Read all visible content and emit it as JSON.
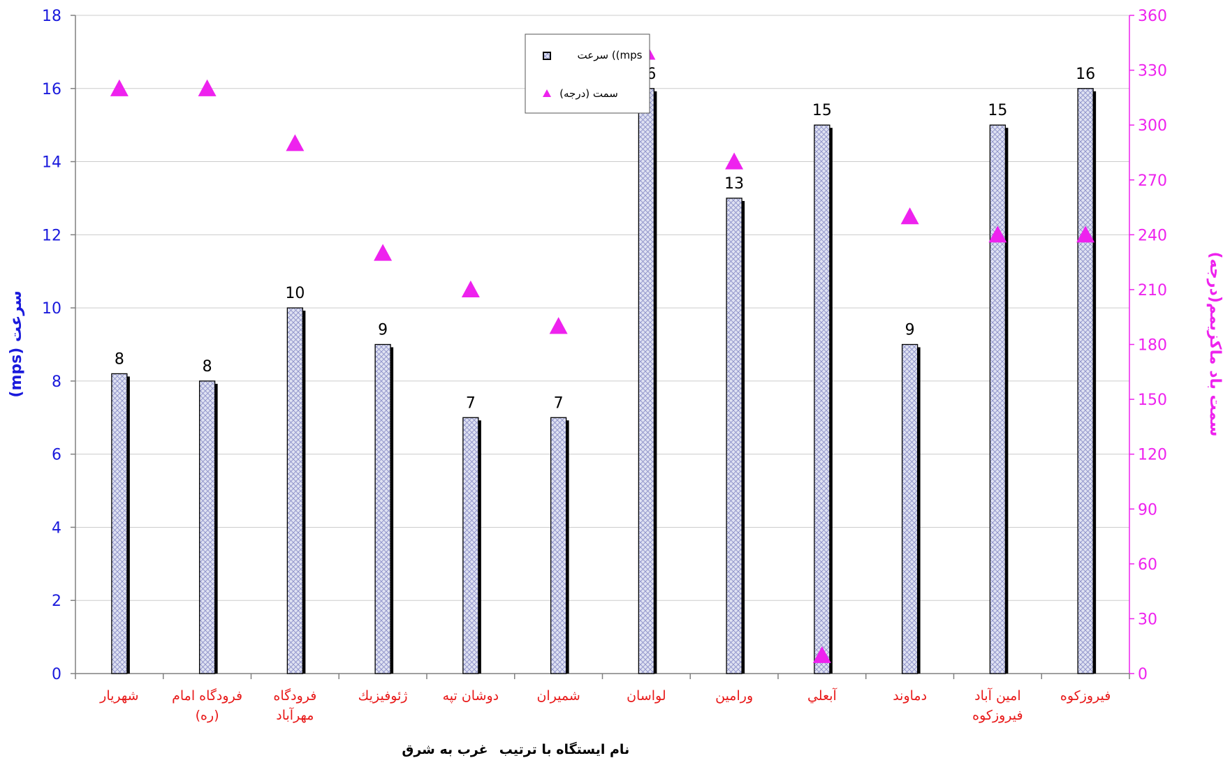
{
  "chart_data": {
    "type": "bar",
    "categories": [
      [
        "شهريار"
      ],
      [
        "فرودگاه امام",
        "(ره)"
      ],
      [
        "فرودگاه",
        "مهرآباد"
      ],
      [
        "ژئوفيزيك"
      ],
      [
        "دوشان تپه"
      ],
      [
        "شميران"
      ],
      [
        "لواسان"
      ],
      [
        "ورامين"
      ],
      [
        "آبعلي"
      ],
      [
        "دماوند"
      ],
      [
        "امين آباد",
        "فيروزكوه"
      ],
      [
        "فيروزكوه"
      ]
    ],
    "series": [
      {
        "name": "سرعت  ((mps",
        "type": "bar",
        "axis": "left",
        "values": [
          8.2,
          8,
          10,
          9,
          7,
          7,
          16,
          13,
          15,
          9,
          15,
          16
        ],
        "labels": [
          "8",
          "8",
          "10",
          "9",
          "7",
          "7",
          "16",
          "13",
          "15",
          "9",
          "15",
          "16"
        ]
      },
      {
        "name": "سمت  (درجه)",
        "type": "scatter",
        "axis": "right",
        "marker": "triangle",
        "values": [
          320,
          320,
          290,
          230,
          210,
          190,
          340,
          280,
          10,
          250,
          240,
          240
        ]
      }
    ],
    "ylabel_left": "(mps) سرعت",
    "ylabel_right": "سمت باد ماكزيمم(درجه)",
    "xlabel_parts": [
      "نام ايستگاه با ترتيب",
      "غرب به شرق"
    ],
    "ylim_left": [
      0,
      18
    ],
    "yticks_left": [
      0,
      2,
      4,
      6,
      8,
      10,
      12,
      14,
      16,
      18
    ],
    "ylim_right": [
      0,
      360
    ],
    "yticks_right": [
      0,
      30,
      60,
      90,
      120,
      150,
      180,
      210,
      240,
      270,
      300,
      330,
      360
    ],
    "grid": true,
    "legend_position": "top-center",
    "colors": {
      "left_axis": "#1a1adc",
      "right_axis": "#ee22ee",
      "category_labels": "#e81818",
      "marker": "#ee22ee",
      "bar_fill": "#dfe2f2",
      "bar_hatch": "#8c90c8",
      "bar_shadow": "#000000",
      "grid": "#cccccc"
    }
  }
}
